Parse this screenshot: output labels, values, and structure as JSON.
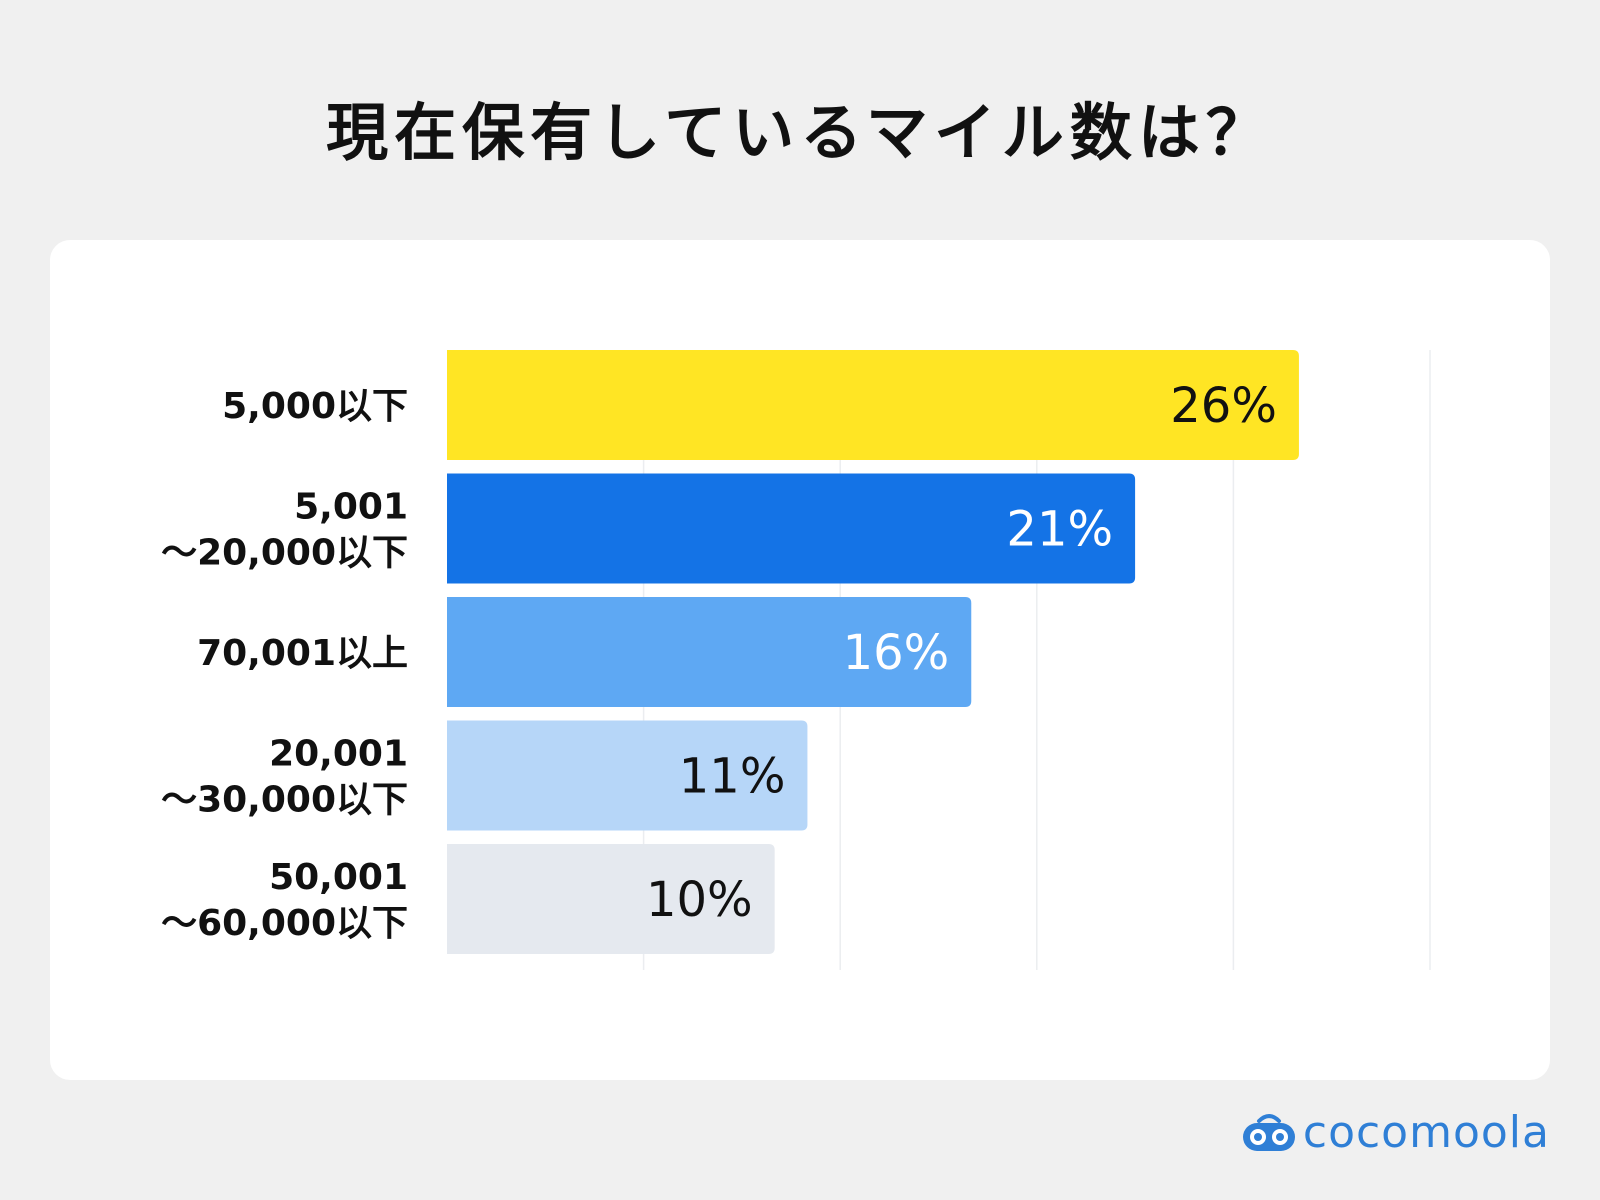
{
  "title": "現在保有しているマイル数は？",
  "brand": {
    "name": "cocomoola",
    "color": "#2f7fd6",
    "icon": "cocomoola-logo-icon"
  },
  "chart_data": {
    "type": "bar",
    "orientation": "horizontal",
    "title": "現在保有しているマイル数は？",
    "categories": [
      [
        "5,000以下"
      ],
      [
        "5,001",
        "〜20,000以下"
      ],
      [
        "70,001以上"
      ],
      [
        "20,001",
        "〜30,000以下"
      ],
      [
        "50,001",
        "〜60,000以下"
      ]
    ],
    "values": [
      26,
      21,
      16,
      11,
      10
    ],
    "value_labels": [
      "26%",
      "21%",
      "16%",
      "11%",
      "10%"
    ],
    "colors": [
      "#ffe524",
      "#1473e6",
      "#5ea8f3",
      "#b6d6f8",
      "#e5e9ef"
    ],
    "label_colors": [
      "#111111",
      "#ffffff",
      "#ffffff",
      "#111111",
      "#111111"
    ],
    "xlim": [
      0,
      30
    ],
    "grid": true,
    "gridline_values": [
      0,
      6,
      12,
      18,
      24,
      30
    ],
    "legend": "none"
  }
}
